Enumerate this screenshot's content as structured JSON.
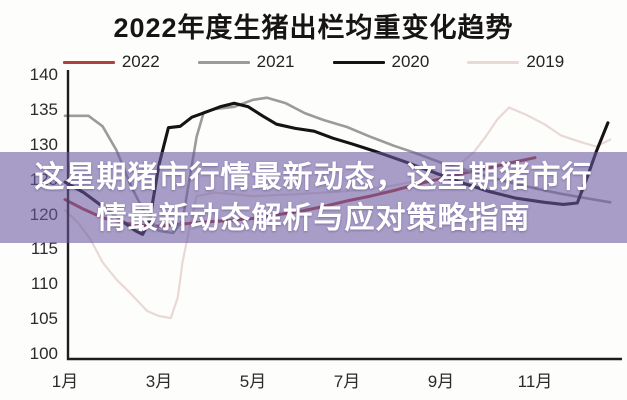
{
  "title": "2022年度生猪出栏均重变化趋势",
  "banner": {
    "line1": "这星期猪市行情最新动态，这星期猪市行",
    "line2": "情最新动态解析与应对策略指南",
    "overlay_color": "#6958a0"
  },
  "chart_data": {
    "type": "line",
    "title": "2022年度生猪出栏均重变化趋势",
    "xlabel": "",
    "ylabel": "",
    "ylim": [
      100,
      140
    ],
    "grid": false,
    "legend_position": "top",
    "y_ticks": [
      140,
      135,
      130,
      125,
      120,
      115,
      110,
      105,
      100
    ],
    "x_ticks": [
      {
        "month": 1,
        "label": "1月"
      },
      {
        "month": 3,
        "label": "3月"
      },
      {
        "month": 5,
        "label": "5月"
      },
      {
        "month": 7,
        "label": "7月"
      },
      {
        "month": 9,
        "label": "9月"
      },
      {
        "month": 11,
        "label": "11月"
      }
    ],
    "legend": [
      {
        "name": "2022",
        "color": "#b2403c"
      },
      {
        "name": "2021",
        "color": "#9b9b9b"
      },
      {
        "name": "2020",
        "color": "#141414"
      },
      {
        "name": "2019",
        "color": "#e9d9d5"
      }
    ],
    "series": [
      {
        "name": "2019",
        "color": "#e9d9d5",
        "points": [
          [
            1.0,
            120.5
          ],
          [
            1.3,
            118.5
          ],
          [
            1.55,
            116.2
          ],
          [
            1.8,
            113
          ],
          [
            2.1,
            110.5
          ],
          [
            2.4,
            108.5
          ],
          [
            2.75,
            106
          ],
          [
            3.0,
            105.3
          ],
          [
            3.25,
            105
          ],
          [
            3.4,
            108
          ],
          [
            3.5,
            113
          ],
          [
            3.65,
            118
          ],
          [
            3.8,
            122.5
          ],
          [
            4.2,
            123
          ],
          [
            5.0,
            122.5
          ],
          [
            6.0,
            122.8
          ],
          [
            7.0,
            123.2
          ],
          [
            8.0,
            124
          ],
          [
            8.7,
            125
          ],
          [
            9.3,
            126.5
          ],
          [
            9.7,
            128.8
          ],
          [
            9.95,
            131
          ],
          [
            10.2,
            133.5
          ],
          [
            10.45,
            135.2
          ],
          [
            10.8,
            134.2
          ],
          [
            11.2,
            132.8
          ],
          [
            11.55,
            131.2
          ],
          [
            12.0,
            130.2
          ],
          [
            12.3,
            129.6
          ],
          [
            12.6,
            130.6
          ]
        ]
      },
      {
        "name": "2022",
        "color": "#b2403c",
        "points": [
          [
            1.0,
            122
          ],
          [
            1.4,
            120.6
          ],
          [
            1.8,
            119.4
          ],
          [
            2.2,
            118.7
          ],
          [
            2.6,
            118.3
          ],
          [
            3.0,
            118.2
          ],
          [
            3.5,
            118.5
          ],
          [
            4.0,
            118.8
          ],
          [
            4.5,
            119
          ],
          [
            5.0,
            119.3
          ],
          [
            5.5,
            119.8
          ],
          [
            6.0,
            120.3
          ],
          [
            6.5,
            121
          ],
          [
            7.0,
            121.8
          ],
          [
            7.5,
            122.5
          ],
          [
            8.0,
            123.3
          ],
          [
            8.5,
            124.2
          ],
          [
            9.0,
            125
          ],
          [
            9.5,
            125.8
          ],
          [
            10.0,
            126.5
          ],
          [
            10.5,
            127.3
          ],
          [
            11.0,
            128
          ]
        ]
      },
      {
        "name": "2021",
        "color": "#9b9b9b",
        "points": [
          [
            1.0,
            134
          ],
          [
            1.5,
            134
          ],
          [
            1.8,
            132.5
          ],
          [
            2.1,
            129
          ],
          [
            2.4,
            124
          ],
          [
            2.7,
            120
          ],
          [
            3.0,
            117.5
          ],
          [
            3.3,
            117.2
          ],
          [
            3.5,
            119
          ],
          [
            3.65,
            125
          ],
          [
            3.8,
            131
          ],
          [
            3.95,
            134.5
          ],
          [
            4.2,
            135
          ],
          [
            4.6,
            135.3
          ],
          [
            5.0,
            136.3
          ],
          [
            5.3,
            136.6
          ],
          [
            5.7,
            135.8
          ],
          [
            6.1,
            134.4
          ],
          [
            6.5,
            133.4
          ],
          [
            7.0,
            132.4
          ],
          [
            7.5,
            131
          ],
          [
            8.0,
            129.7
          ],
          [
            8.4,
            128.8
          ],
          [
            9.0,
            127.3
          ],
          [
            9.5,
            126.3
          ],
          [
            10.0,
            125.3
          ],
          [
            10.5,
            124.4
          ],
          [
            11.0,
            123.6
          ],
          [
            11.5,
            122.9
          ],
          [
            12.0,
            122.3
          ],
          [
            12.6,
            121.6
          ]
        ]
      },
      {
        "name": "2020",
        "color": "#141414",
        "points": [
          [
            1.0,
            124.5
          ],
          [
            1.4,
            123
          ],
          [
            1.8,
            121
          ],
          [
            2.2,
            119
          ],
          [
            2.5,
            117.5
          ],
          [
            2.65,
            117
          ],
          [
            2.8,
            119
          ],
          [
            3.0,
            127
          ],
          [
            3.2,
            132.3
          ],
          [
            3.45,
            132.5
          ],
          [
            3.7,
            133.8
          ],
          [
            3.9,
            134.3
          ],
          [
            4.3,
            135.3
          ],
          [
            4.6,
            135.8
          ],
          [
            4.9,
            135.3
          ],
          [
            5.2,
            134
          ],
          [
            5.5,
            132.8
          ],
          [
            5.9,
            132.2
          ],
          [
            6.3,
            131.8
          ],
          [
            6.7,
            130.8
          ],
          [
            7.1,
            130
          ],
          [
            7.6,
            128.9
          ],
          [
            8.2,
            127.5
          ],
          [
            8.8,
            126
          ],
          [
            9.4,
            124.5
          ],
          [
            10.0,
            123.2
          ],
          [
            10.6,
            122.2
          ],
          [
            11.2,
            121.6
          ],
          [
            11.6,
            121.3
          ],
          [
            11.9,
            121.5
          ],
          [
            12.1,
            125
          ],
          [
            12.3,
            128.8
          ],
          [
            12.55,
            133
          ]
        ]
      }
    ]
  }
}
